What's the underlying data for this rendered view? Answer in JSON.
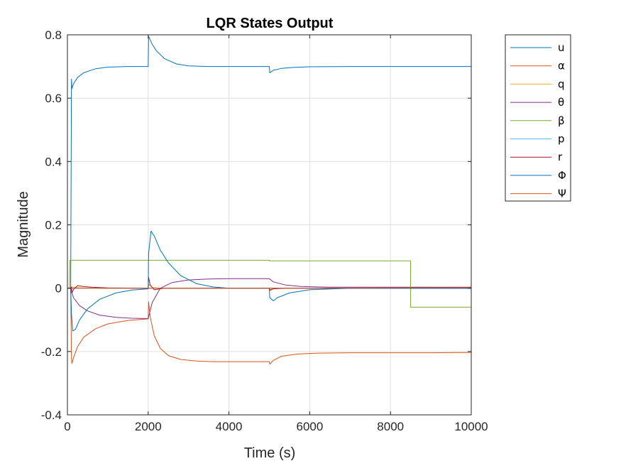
{
  "chart_data": {
    "type": "line",
    "title": "LQR States Output",
    "xlabel": "Time (s)",
    "ylabel": "Magnitude",
    "xlim": [
      0,
      10000
    ],
    "ylim": [
      -0.4,
      0.8
    ],
    "xticks": [
      0,
      2000,
      4000,
      6000,
      8000,
      10000
    ],
    "xtick_labels": [
      "0",
      "2000",
      "4000",
      "6000",
      "8000",
      "10000"
    ],
    "yticks": [
      -0.4,
      -0.2,
      0,
      0.2,
      0.4,
      0.6,
      0.8
    ],
    "ytick_labels": [
      "-0.4",
      "-0.2",
      "0",
      "0.2",
      "0.4",
      "0.6",
      "0.8"
    ],
    "grid": true,
    "legend_position": "outside-top-right",
    "series": [
      {
        "name": "u",
        "color": "#0072BD",
        "x": [
          0,
          80,
          100,
          110,
          150,
          250,
          400,
          700,
          1000,
          1500,
          1998,
          2000,
          2010,
          2100,
          2200,
          2400,
          2700,
          3000,
          3500,
          4000,
          4998,
          5000,
          5010,
          5100,
          5300,
          5600,
          6000,
          7000,
          8000,
          9000,
          10000
        ],
        "y": [
          0,
          0,
          0.66,
          0.63,
          0.645,
          0.665,
          0.68,
          0.693,
          0.698,
          0.7,
          0.7,
          0.7,
          0.795,
          0.77,
          0.75,
          0.725,
          0.708,
          0.702,
          0.7,
          0.7,
          0.7,
          0.7,
          0.68,
          0.688,
          0.694,
          0.697,
          0.699,
          0.7,
          0.7,
          0.7,
          0.7
        ]
      },
      {
        "name": "α",
        "color": "#D95319",
        "x": [
          0,
          80,
          100,
          110,
          150,
          250,
          400,
          700,
          1000,
          1500,
          1998,
          2000,
          2010,
          2050,
          2150,
          2300,
          2500,
          2800,
          3200,
          3600,
          4000,
          4998,
          5000,
          5010,
          5100,
          5300,
          5700,
          6200,
          7000,
          8000,
          9000,
          10000
        ],
        "y": [
          0,
          0,
          -0.22,
          -0.238,
          -0.22,
          -0.185,
          -0.155,
          -0.128,
          -0.113,
          -0.102,
          -0.097,
          -0.097,
          -0.043,
          -0.09,
          -0.15,
          -0.19,
          -0.213,
          -0.225,
          -0.23,
          -0.232,
          -0.232,
          -0.232,
          -0.232,
          -0.24,
          -0.228,
          -0.215,
          -0.208,
          -0.205,
          -0.204,
          -0.204,
          -0.204,
          -0.203
        ]
      },
      {
        "name": "q",
        "color": "#EDB120",
        "x": [
          0,
          90,
          100,
          120,
          200,
          400,
          1000,
          1998,
          2000,
          2020,
          2100,
          2300,
          4998,
          5000,
          5020,
          5200,
          10000
        ],
        "y": [
          0,
          0,
          -0.005,
          0.004,
          0.002,
          0.001,
          0,
          0,
          0,
          0.012,
          0.002,
          0,
          0,
          0,
          -0.004,
          0,
          0
        ]
      },
      {
        "name": "θ",
        "color": "#7E2F8E",
        "x": [
          0,
          80,
          100,
          150,
          300,
          500,
          800,
          1200,
          1600,
          1998,
          2000,
          2100,
          2300,
          2600,
          3000,
          3500,
          4000,
          4998,
          5000,
          5100,
          5400,
          5800,
          6500,
          7500,
          10000
        ],
        "y": [
          0,
          0,
          -0.01,
          -0.03,
          -0.055,
          -0.072,
          -0.085,
          -0.092,
          -0.095,
          -0.096,
          -0.096,
          -0.045,
          0.0,
          0.018,
          0.026,
          0.029,
          0.03,
          0.03,
          0.03,
          0.02,
          0.01,
          0.005,
          0.003,
          0.003,
          0.003
        ]
      },
      {
        "name": "β",
        "color": "#77AC30",
        "x": [
          0,
          50,
          60,
          2000,
          4998,
          5000,
          8498,
          8500,
          10000
        ],
        "y": [
          0,
          0,
          0.088,
          0.088,
          0.088,
          0.086,
          0.086,
          -0.06,
          -0.06
        ]
      },
      {
        "name": "p",
        "color": "#4DBEEE",
        "x": [
          0,
          80,
          100,
          2000,
          5000,
          10000
        ],
        "y": [
          0,
          0,
          0,
          0,
          0,
          0
        ]
      },
      {
        "name": "r",
        "color": "#A2142F",
        "x": [
          0,
          90,
          100,
          110,
          150,
          250,
          400,
          600,
          1000,
          1998,
          2000,
          2010,
          2050,
          2150,
          2400,
          4998,
          5000,
          5010,
          5100,
          5400,
          10000
        ],
        "y": [
          0,
          0,
          0.004,
          -0.015,
          -0.004,
          0.008,
          0.005,
          0.003,
          0.001,
          0,
          0,
          0.034,
          0.01,
          -0.005,
          0,
          0,
          0,
          -0.007,
          -0.002,
          0,
          0
        ]
      },
      {
        "name": "Φ",
        "color": "#0072BD",
        "x": [
          0,
          80,
          100,
          130,
          200,
          300,
          500,
          800,
          1200,
          1600,
          1998,
          2000,
          2010,
          2070,
          2150,
          2300,
          2500,
          2800,
          3200,
          3600,
          4000,
          4998,
          5000,
          5010,
          5100,
          5200,
          5500,
          6000,
          7000,
          10000
        ],
        "y": [
          0,
          0,
          -0.08,
          -0.135,
          -0.13,
          -0.1,
          -0.065,
          -0.035,
          -0.015,
          -0.006,
          -0.002,
          -0.002,
          0.11,
          0.18,
          0.165,
          0.12,
          0.08,
          0.04,
          0.014,
          0.004,
          0,
          0,
          0,
          -0.03,
          -0.04,
          -0.03,
          -0.015,
          -0.005,
          0,
          0
        ]
      },
      {
        "name": "Ψ",
        "color": "#D95319",
        "x": [
          0,
          80,
          100,
          2000,
          5000,
          10000
        ],
        "y": [
          0,
          0,
          0,
          0,
          0,
          0.002
        ]
      }
    ]
  }
}
